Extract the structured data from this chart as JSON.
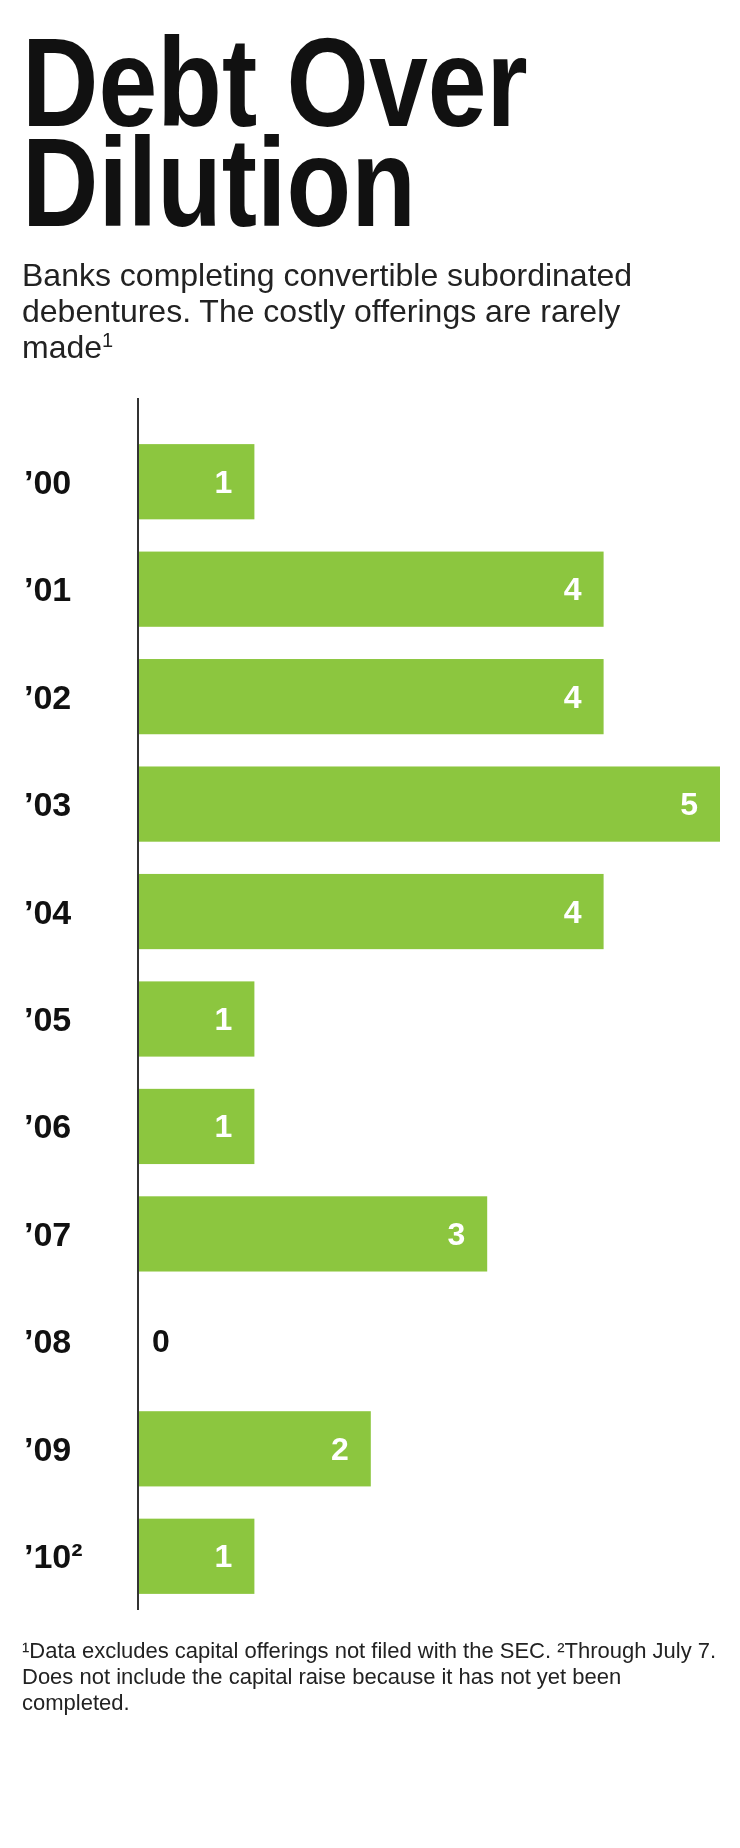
{
  "chart_data": {
    "type": "bar",
    "orientation": "horizontal",
    "title": "Debt Over Dilution",
    "subtitle": "Banks completing convertible subordinated debentures. The costly offerings are rarely made$^{1}$",
    "categories": [
      "’00",
      "’01",
      "’02",
      "’03",
      "’04",
      "’05",
      "’06",
      "’07",
      "’08",
      "’09",
      "’10²"
    ],
    "values": [
      1,
      4,
      4,
      5,
      4,
      1,
      1,
      3,
      0,
      2,
      1
    ],
    "color": "#8cc63f",
    "data_labels": true,
    "annotations": [
      "¹Data excludes capital offerings not filed with the SEC. ²Through July 7. Does not include the capital raise because it has not yet been completed."
    ]
  }
}
